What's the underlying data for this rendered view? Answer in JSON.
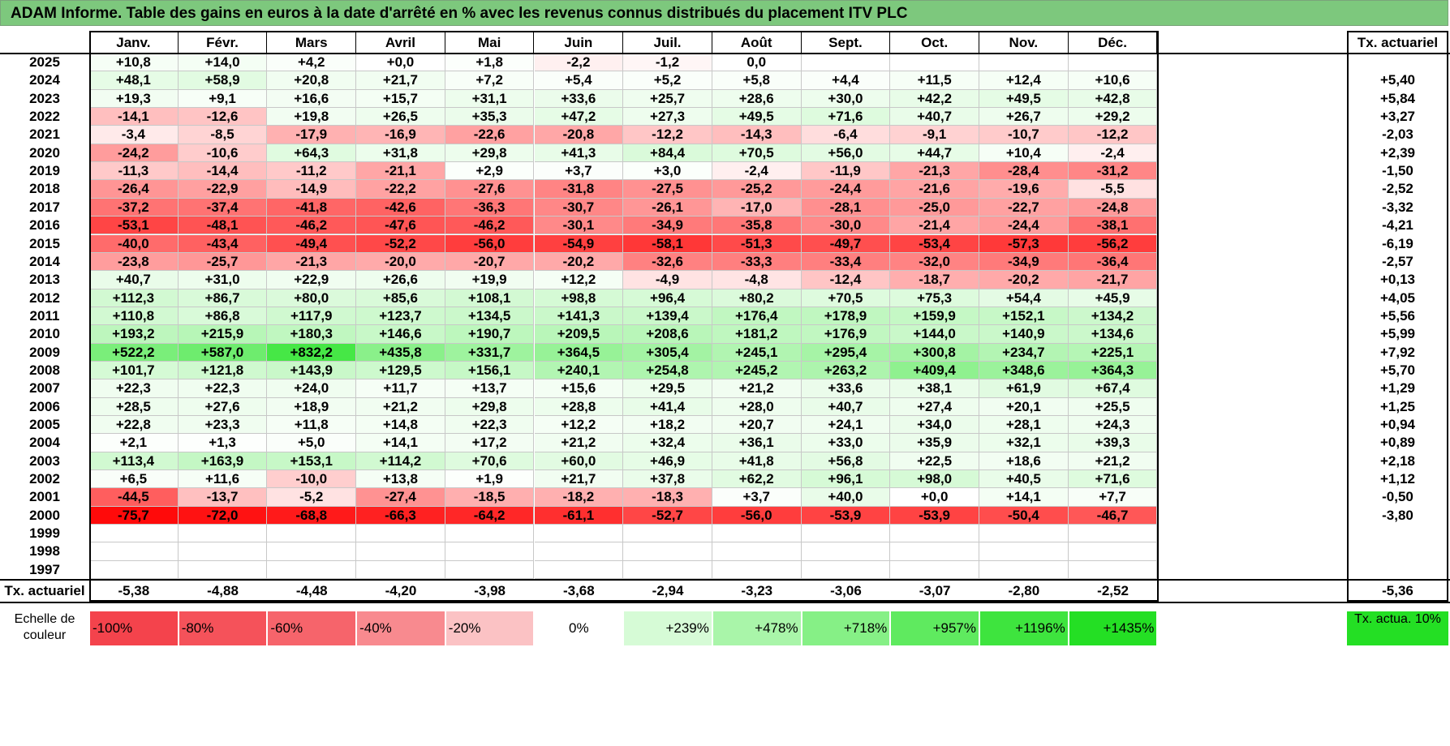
{
  "title": "ADAM Informe. Table des gains en euros à la date d'arrêté en % avec les revenus connus distribués du placement ITV PLC",
  "months": [
    "Janv.",
    "Févr.",
    "Mars",
    "Avril",
    "Mai",
    "Juin",
    "Juil.",
    "Août",
    "Sept.",
    "Oct.",
    "Nov.",
    "Déc."
  ],
  "rate_header": "Tx. actuariel",
  "rows": [
    {
      "year": "2025",
      "values": [
        "+10,8",
        "+14,0",
        "+4,2",
        "+0,0",
        "+1,8",
        "-2,2",
        "-1,2",
        "0,0",
        "",
        "",
        "",
        ""
      ],
      "rate": ""
    },
    {
      "year": "2024",
      "values": [
        "+48,1",
        "+58,9",
        "+20,8",
        "+21,7",
        "+7,2",
        "+5,4",
        "+5,2",
        "+5,8",
        "+4,4",
        "+11,5",
        "+12,4",
        "+10,6"
      ],
      "rate": "+5,40"
    },
    {
      "year": "2023",
      "values": [
        "+19,3",
        "+9,1",
        "+16,6",
        "+15,7",
        "+31,1",
        "+33,6",
        "+25,7",
        "+28,6",
        "+30,0",
        "+42,2",
        "+49,5",
        "+42,8"
      ],
      "rate": "+5,84"
    },
    {
      "year": "2022",
      "values": [
        "-14,1",
        "-12,6",
        "+19,8",
        "+26,5",
        "+35,3",
        "+47,2",
        "+27,3",
        "+49,5",
        "+71,6",
        "+40,7",
        "+26,7",
        "+29,2"
      ],
      "rate": "+3,27"
    },
    {
      "year": "2021",
      "values": [
        "-3,4",
        "-8,5",
        "-17,9",
        "-16,9",
        "-22,6",
        "-20,8",
        "-12,2",
        "-14,3",
        "-6,4",
        "-9,1",
        "-10,7",
        "-12,2"
      ],
      "rate": "-2,03"
    },
    {
      "year": "2020",
      "values": [
        "-24,2",
        "-10,6",
        "+64,3",
        "+31,8",
        "+29,8",
        "+41,3",
        "+84,4",
        "+70,5",
        "+56,0",
        "+44,7",
        "+10,4",
        "-2,4"
      ],
      "rate": "+2,39"
    },
    {
      "year": "2019",
      "values": [
        "-11,3",
        "-14,4",
        "-11,2",
        "-21,1",
        "+2,9",
        "+3,7",
        "+3,0",
        "-2,4",
        "-11,9",
        "-21,3",
        "-28,4",
        "-31,2"
      ],
      "rate": "-1,50"
    },
    {
      "year": "2018",
      "values": [
        "-26,4",
        "-22,9",
        "-14,9",
        "-22,2",
        "-27,6",
        "-31,8",
        "-27,5",
        "-25,2",
        "-24,4",
        "-21,6",
        "-19,6",
        "-5,5"
      ],
      "rate": "-2,52"
    },
    {
      "year": "2017",
      "values": [
        "-37,2",
        "-37,4",
        "-41,8",
        "-42,6",
        "-36,3",
        "-30,7",
        "-26,1",
        "-17,0",
        "-28,1",
        "-25,0",
        "-22,7",
        "-24,8"
      ],
      "rate": "-3,32"
    },
    {
      "year": "2016",
      "values": [
        "-53,1",
        "-48,1",
        "-46,2",
        "-47,6",
        "-46,2",
        "-30,1",
        "-34,9",
        "-35,8",
        "-30,0",
        "-21,4",
        "-24,4",
        "-38,1"
      ],
      "rate": "-4,21"
    },
    {
      "year": "2015",
      "values": [
        "-40,0",
        "-43,4",
        "-49,4",
        "-52,2",
        "-56,0",
        "-54,9",
        "-58,1",
        "-51,3",
        "-49,7",
        "-53,4",
        "-57,3",
        "-56,2"
      ],
      "rate": "-6,19"
    },
    {
      "year": "2014",
      "values": [
        "-23,8",
        "-25,7",
        "-21,3",
        "-20,0",
        "-20,7",
        "-20,2",
        "-32,6",
        "-33,3",
        "-33,4",
        "-32,0",
        "-34,9",
        "-36,4"
      ],
      "rate": "-2,57"
    },
    {
      "year": "2013",
      "values": [
        "+40,7",
        "+31,0",
        "+22,9",
        "+26,6",
        "+19,9",
        "+12,2",
        "-4,9",
        "-4,8",
        "-12,4",
        "-18,7",
        "-20,2",
        "-21,7"
      ],
      "rate": "+0,13"
    },
    {
      "year": "2012",
      "values": [
        "+112,3",
        "+86,7",
        "+80,0",
        "+85,6",
        "+108,1",
        "+98,8",
        "+96,4",
        "+80,2",
        "+70,5",
        "+75,3",
        "+54,4",
        "+45,9"
      ],
      "rate": "+4,05"
    },
    {
      "year": "2011",
      "values": [
        "+110,8",
        "+86,8",
        "+117,9",
        "+123,7",
        "+134,5",
        "+141,3",
        "+139,4",
        "+176,4",
        "+178,9",
        "+159,9",
        "+152,1",
        "+134,2"
      ],
      "rate": "+5,56"
    },
    {
      "year": "2010",
      "values": [
        "+193,2",
        "+215,9",
        "+180,3",
        "+146,6",
        "+190,7",
        "+209,5",
        "+208,6",
        "+181,2",
        "+176,9",
        "+144,0",
        "+140,9",
        "+134,6"
      ],
      "rate": "+5,99"
    },
    {
      "year": "2009",
      "values": [
        "+522,2",
        "+587,0",
        "+832,2",
        "+435,8",
        "+331,7",
        "+364,5",
        "+305,4",
        "+245,1",
        "+295,4",
        "+300,8",
        "+234,7",
        "+225,1"
      ],
      "rate": "+7,92"
    },
    {
      "year": "2008",
      "values": [
        "+101,7",
        "+121,8",
        "+143,9",
        "+129,5",
        "+156,1",
        "+240,1",
        "+254,8",
        "+245,2",
        "+263,2",
        "+409,4",
        "+348,6",
        "+364,3"
      ],
      "rate": "+5,70"
    },
    {
      "year": "2007",
      "values": [
        "+22,3",
        "+22,3",
        "+24,0",
        "+11,7",
        "+13,7",
        "+15,6",
        "+29,5",
        "+21,2",
        "+33,6",
        "+38,1",
        "+61,9",
        "+67,4"
      ],
      "rate": "+1,29"
    },
    {
      "year": "2006",
      "values": [
        "+28,5",
        "+27,6",
        "+18,9",
        "+21,2",
        "+29,8",
        "+28,8",
        "+41,4",
        "+28,0",
        "+40,7",
        "+27,4",
        "+20,1",
        "+25,5"
      ],
      "rate": "+1,25"
    },
    {
      "year": "2005",
      "values": [
        "+22,8",
        "+23,3",
        "+11,8",
        "+14,8",
        "+22,3",
        "+12,2",
        "+18,2",
        "+20,7",
        "+24,1",
        "+34,0",
        "+28,1",
        "+24,3"
      ],
      "rate": "+0,94"
    },
    {
      "year": "2004",
      "values": [
        "+2,1",
        "+1,3",
        "+5,0",
        "+14,1",
        "+17,2",
        "+21,2",
        "+32,4",
        "+36,1",
        "+33,0",
        "+35,9",
        "+32,1",
        "+39,3"
      ],
      "rate": "+0,89"
    },
    {
      "year": "2003",
      "values": [
        "+113,4",
        "+163,9",
        "+153,1",
        "+114,2",
        "+70,6",
        "+60,0",
        "+46,9",
        "+41,8",
        "+56,8",
        "+22,5",
        "+18,6",
        "+21,2"
      ],
      "rate": "+2,18"
    },
    {
      "year": "2002",
      "values": [
        "+6,5",
        "+11,6",
        "-10,0",
        "+13,8",
        "+1,9",
        "+21,7",
        "+37,8",
        "+62,2",
        "+96,1",
        "+98,0",
        "+40,5",
        "+71,6"
      ],
      "rate": "+1,12"
    },
    {
      "year": "2001",
      "values": [
        "-44,5",
        "-13,7",
        "-5,2",
        "-27,4",
        "-18,5",
        "-18,2",
        "-18,3",
        "+3,7",
        "+40,0",
        "+0,0",
        "+14,1",
        "+7,7"
      ],
      "rate": "-0,50"
    },
    {
      "year": "2000",
      "values": [
        "-75,7",
        "-72,0",
        "-68,8",
        "-66,3",
        "-64,2",
        "-61,1",
        "-52,7",
        "-56,0",
        "-53,9",
        "-53,9",
        "-50,4",
        "-46,7"
      ],
      "rate": "-3,80"
    },
    {
      "year": "1999",
      "values": [
        "",
        "",
        "",
        "",
        "",
        "",
        "",
        "",
        "",
        "",
        "",
        ""
      ],
      "rate": ""
    },
    {
      "year": "1998",
      "values": [
        "",
        "",
        "",
        "",
        "",
        "",
        "",
        "",
        "",
        "",
        "",
        ""
      ],
      "rate": ""
    },
    {
      "year": "1997",
      "values": [
        "",
        "",
        "",
        "",
        "",
        "",
        "",
        "",
        "",
        "",
        "",
        ""
      ],
      "rate": ""
    }
  ],
  "footer": {
    "label": "Tx. actuariel",
    "values": [
      "-5,38",
      "-4,88",
      "-4,48",
      "-4,20",
      "-3,98",
      "-3,68",
      "-2,94",
      "-3,23",
      "-3,06",
      "-3,07",
      "-2,80",
      "-2,52"
    ],
    "rate": "-5,36"
  },
  "scale": {
    "label": "Echelle de couleur",
    "items": [
      {
        "text": "-100%",
        "color": "#f4434c"
      },
      {
        "text": "-80%",
        "color": "#f5525a"
      },
      {
        "text": "-60%",
        "color": "#f6646b"
      },
      {
        "text": "-40%",
        "color": "#f88a8f"
      },
      {
        "text": "-20%",
        "color": "#fbc2c4"
      },
      {
        "text": "0%",
        "color": "#ffffff"
      },
      {
        "text": "+239%",
        "color": "#d6fbd6"
      },
      {
        "text": "+478%",
        "color": "#a9f5a9"
      },
      {
        "text": "+718%",
        "color": "#86f086"
      },
      {
        "text": "+957%",
        "color": "#5fea5f"
      },
      {
        "text": "+1196%",
        "color": "#3ee43e"
      },
      {
        "text": "+1435%",
        "color": "#24df24"
      }
    ],
    "rate_label": "Tx. actua. 10%",
    "rate_color": "#24df24"
  },
  "colors": {
    "title_bg": "#7dc87d",
    "neg_max": "#ff0000",
    "pos_max": "#00e000"
  }
}
